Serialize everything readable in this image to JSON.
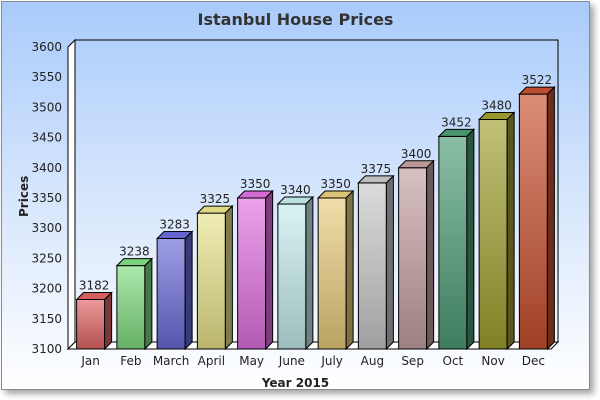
{
  "chart_data": {
    "type": "bar",
    "title": "Istanbul House Prices",
    "xlabel": "Year 2015",
    "ylabel": "Prices",
    "ylim": [
      3100,
      3600
    ],
    "yticks": [
      3100,
      3150,
      3200,
      3250,
      3300,
      3350,
      3400,
      3450,
      3500,
      3550,
      3600
    ],
    "grid": false,
    "legend": null,
    "style": "3d-bars",
    "categories": [
      "Jan",
      "Feb",
      "March",
      "April",
      "May",
      "June",
      "July",
      "Aug",
      "Sep",
      "Oct",
      "Nov",
      "Dec"
    ],
    "values": [
      3182,
      3238,
      3283,
      3325,
      3350,
      3340,
      3350,
      3375,
      3400,
      3452,
      3480,
      3522
    ],
    "colors": [
      "#e06464",
      "#7fdc7f",
      "#6a6ad8",
      "#e8e48c",
      "#e070e0",
      "#c4ecec",
      "#e8cc7c",
      "#c8c8c8",
      "#c4a0a0",
      "#4c9c74",
      "#a0a030",
      "#c85030"
    ]
  }
}
